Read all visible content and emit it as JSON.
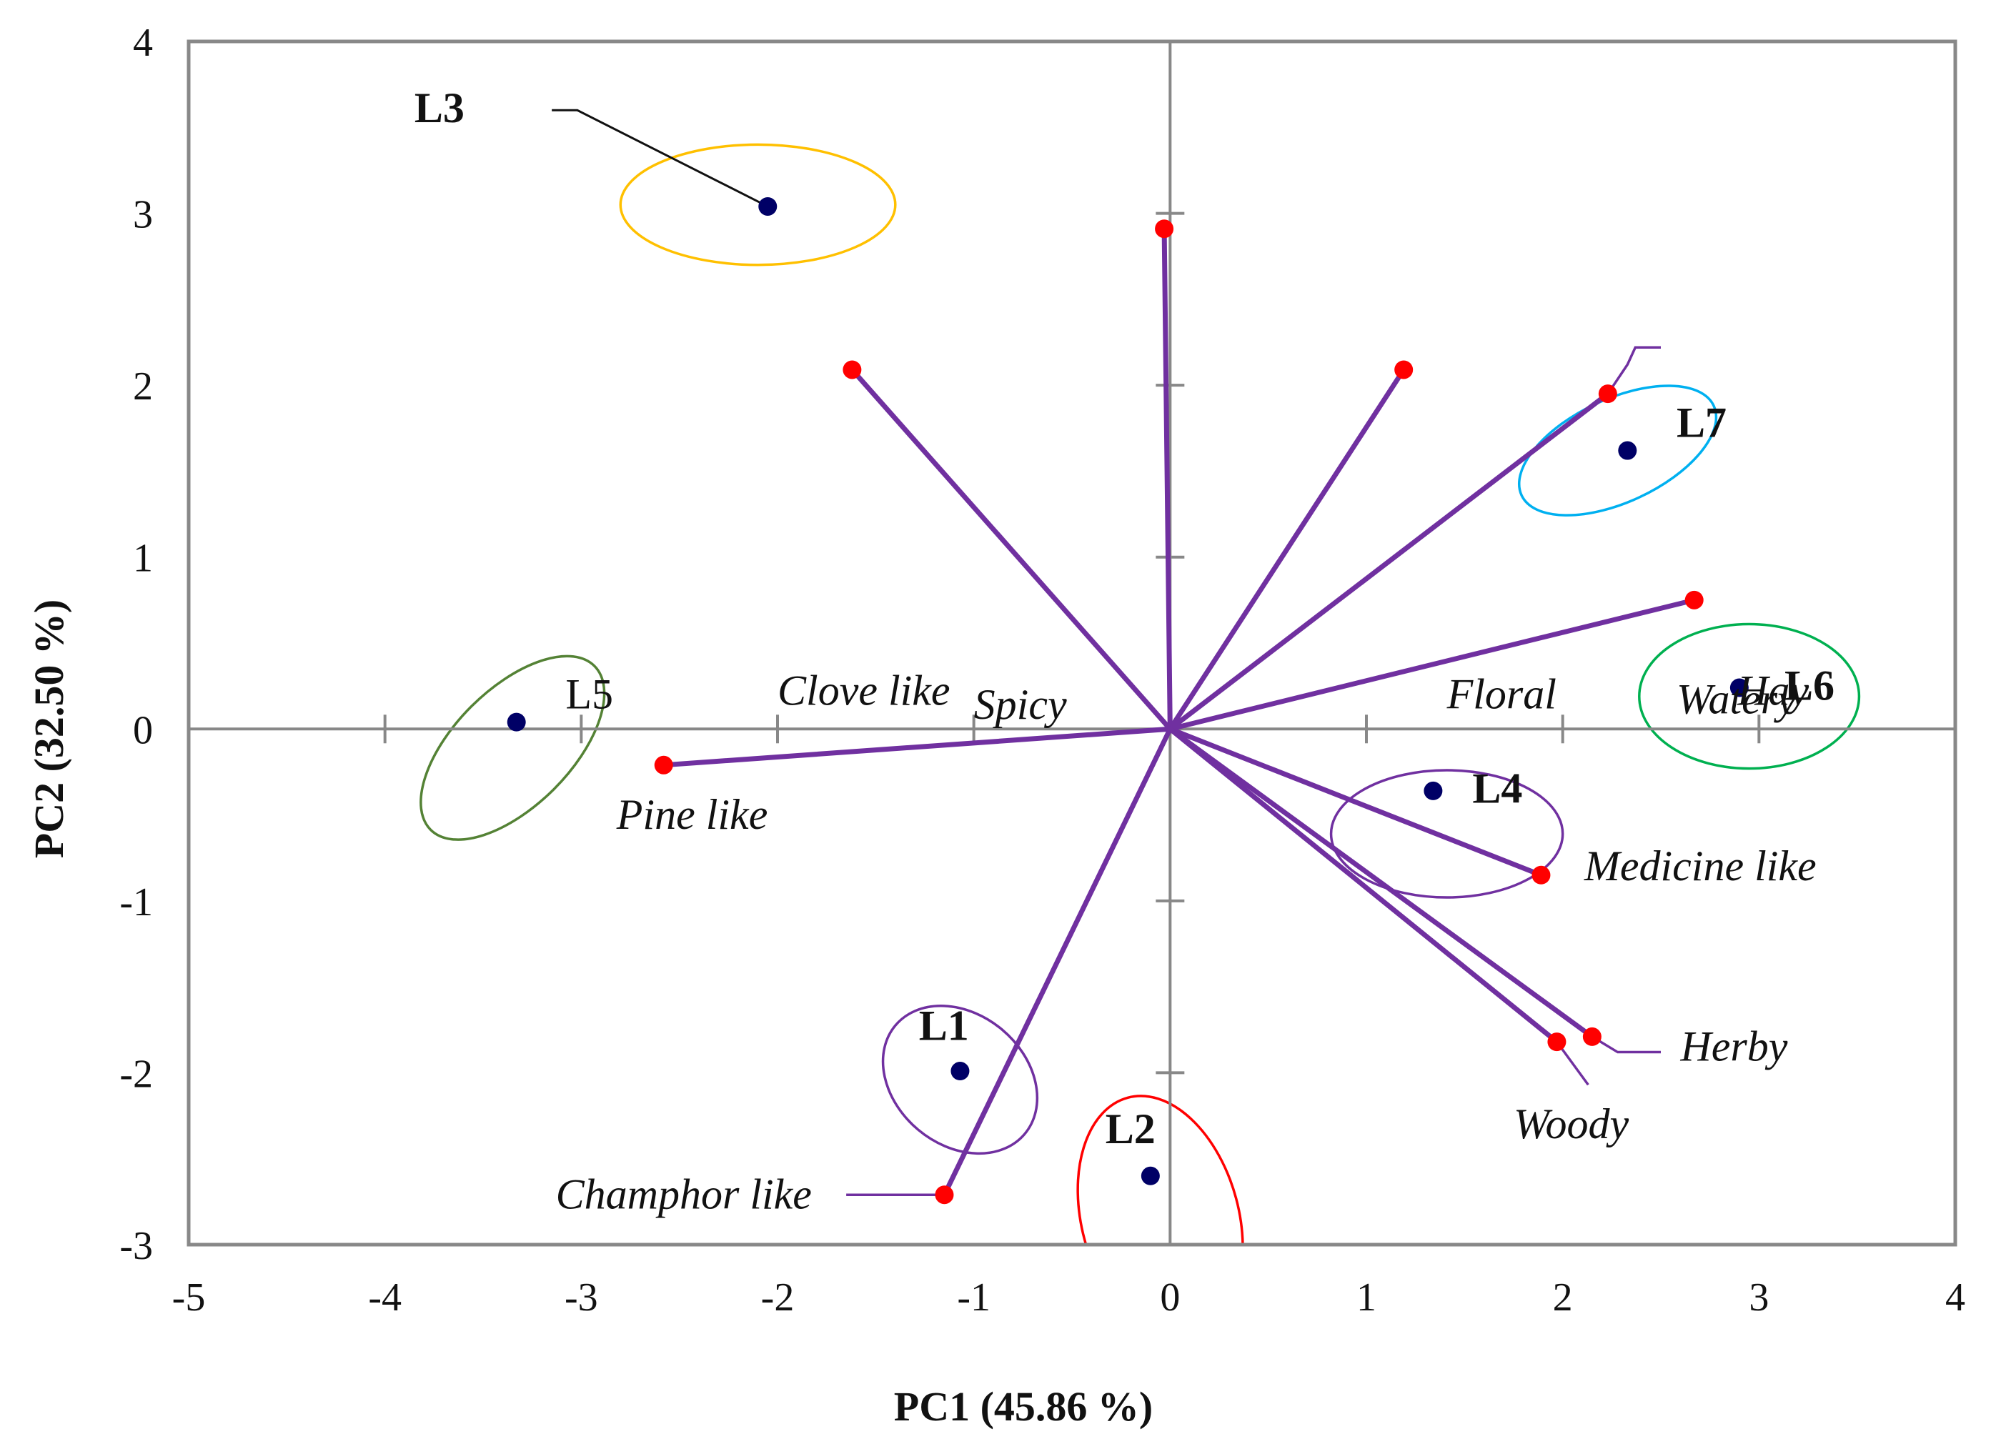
{
  "chart_data": {
    "type": "scatter",
    "subtype": "pca-biplot",
    "xlabel": "PC1 (45.86 %)",
    "ylabel": "PC2 (32.50 %)",
    "xlim": [
      -5,
      4
    ],
    "ylim": [
      -3,
      4
    ],
    "xticks": [
      -5,
      -4,
      -3,
      -2,
      -1,
      0,
      1,
      2,
      3,
      4
    ],
    "yticks": [
      -3,
      -2,
      -1,
      0,
      1,
      2,
      3,
      4
    ],
    "grid": false,
    "colors": {
      "vector": "#7030A0",
      "attribute_point": "#FF0000",
      "sample_point": "#000066",
      "frame": "#888888",
      "axis_line": "#888888"
    },
    "attributes": [
      {
        "name": "Spicy",
        "x": -0.03,
        "y": 2.91
      },
      {
        "name": "Clove like",
        "x": -1.62,
        "y": 2.09
      },
      {
        "name": "Floral",
        "x": 1.19,
        "y": 2.09
      },
      {
        "name": "Watery",
        "x": 2.23,
        "y": 1.95
      },
      {
        "name": "Hay",
        "x": 2.67,
        "y": 0.75
      },
      {
        "name": "Pine like",
        "x": -2.58,
        "y": -0.21
      },
      {
        "name": "Medicine like",
        "x": 1.89,
        "y": -0.85
      },
      {
        "name": "Herby",
        "x": 2.15,
        "y": -1.79
      },
      {
        "name": "Woody",
        "x": 1.97,
        "y": -1.82
      },
      {
        "name": "Champhor like",
        "x": -1.15,
        "y": -2.71
      }
    ],
    "samples": [
      {
        "name": "L1",
        "x": -1.07,
        "y": -1.99,
        "bold": true,
        "ellipse_color": "#7030A0"
      },
      {
        "name": "L2",
        "x": -0.1,
        "y": -2.6,
        "bold": true,
        "ellipse_color": "#FF0000"
      },
      {
        "name": "L3",
        "x": -2.05,
        "y": 3.04,
        "bold": true,
        "ellipse_color": "#FFC000"
      },
      {
        "name": "L4",
        "x": 1.34,
        "y": -0.36,
        "bold": true,
        "ellipse_color": "#7030A0"
      },
      {
        "name": "L5",
        "x": -3.33,
        "y": 0.04,
        "bold": false,
        "ellipse_color": "#548235"
      },
      {
        "name": "L6",
        "x": 2.9,
        "y": 0.24,
        "bold": true,
        "ellipse_color": "#00B050"
      },
      {
        "name": "L7",
        "x": 2.33,
        "y": 1.62,
        "bold": true,
        "ellipse_color": "#00B0F0"
      }
    ]
  }
}
